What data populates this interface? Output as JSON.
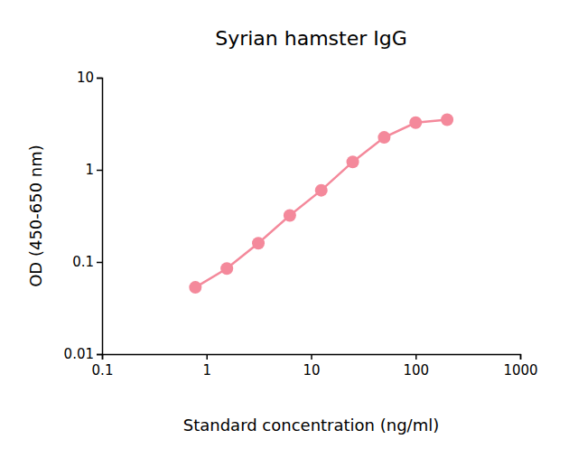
{
  "chart_data": {
    "type": "line",
    "title": "Syrian hamster IgG",
    "x_label": "Standard concentration (ng/ml)",
    "y_label": "OD (450-650 nm)",
    "x": [
      0.78125,
      1.5625,
      3.125,
      6.25,
      12.5,
      25,
      50,
      100,
      200
    ],
    "values": [
      0.053,
      0.085,
      0.16,
      0.32,
      0.6,
      1.22,
      2.25,
      3.25,
      3.5
    ],
    "color": "#f4899b",
    "marker": "circle",
    "line_style": "solid",
    "log": true,
    "xlim": [
      0.1,
      1000
    ],
    "xticks": [
      0.1,
      1,
      10,
      100,
      1000
    ],
    "ylim": [
      0.01,
      10
    ],
    "yticks": [
      0.01,
      0.1,
      1,
      10
    ],
    "grid": false
  }
}
